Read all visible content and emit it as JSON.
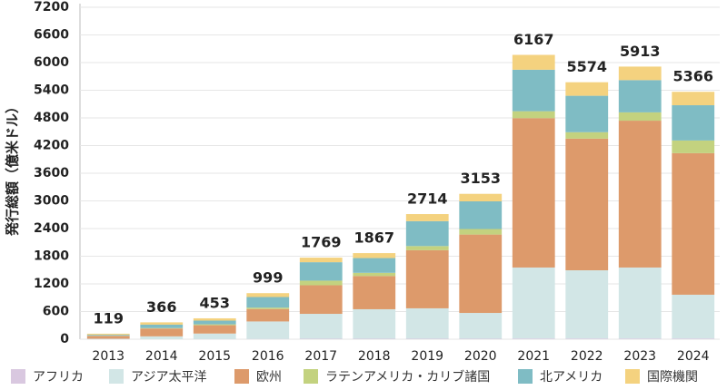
{
  "chart_data": {
    "type": "bar",
    "stacked": true,
    "y_label": "発行総額（億米ドル）",
    "categories": [
      "2013",
      "2014",
      "2015",
      "2016",
      "2017",
      "2018",
      "2019",
      "2020",
      "2021",
      "2022",
      "2023",
      "2024"
    ],
    "totals": [
      119,
      366,
      453,
      999,
      1769,
      1867,
      2714,
      3153,
      6167,
      5574,
      5913,
      5366
    ],
    "series": [
      {
        "name": "アフリカ",
        "color": "#d9c8e0",
        "values": [
          0,
          2,
          3,
          5,
          10,
          10,
          10,
          10,
          15,
          15,
          15,
          15
        ]
      },
      {
        "name": "アジア太平洋",
        "color": "#d2e6e6",
        "values": [
          10,
          60,
          120,
          380,
          540,
          640,
          660,
          560,
          1540,
          1480,
          1540,
          950
        ]
      },
      {
        "name": "欧州",
        "color": "#dd9a6b",
        "values": [
          60,
          170,
          180,
          270,
          620,
          720,
          1260,
          1700,
          3240,
          2855,
          3185,
          3070
        ]
      },
      {
        "name": "ラテンアメリカ・カリブ諸国",
        "color": "#c3d27f",
        "values": [
          5,
          10,
          20,
          30,
          100,
          70,
          90,
          120,
          150,
          140,
          180,
          275
        ]
      },
      {
        "name": "北アメリカ",
        "color": "#7fbcc4",
        "values": [
          20,
          74,
          80,
          230,
          400,
          320,
          540,
          600,
          900,
          790,
          700,
          765
        ]
      },
      {
        "name": "国際機関",
        "color": "#f4d27f",
        "values": [
          24,
          50,
          50,
          84,
          99,
          107,
          154,
          163,
          322,
          294,
          293,
          291
        ]
      }
    ],
    "ylim": [
      0,
      7200
    ],
    "yticks": [
      0,
      600,
      1200,
      1800,
      2400,
      3000,
      3600,
      4200,
      4800,
      5400,
      6000,
      6600,
      7200
    ],
    "grid": true
  }
}
